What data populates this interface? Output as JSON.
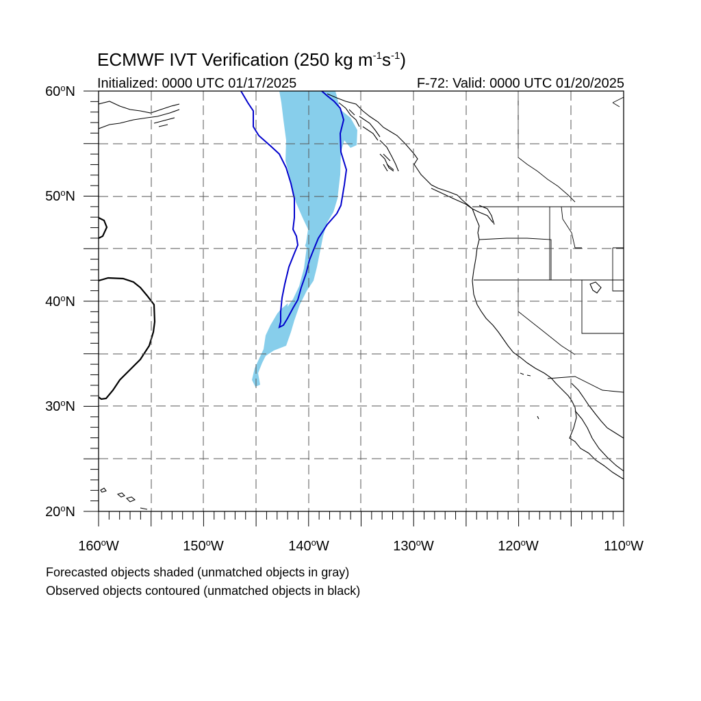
{
  "title": {
    "main": "ECMWF IVT Verification (250 kg m",
    "sup1": "-1",
    "mid": "s",
    "sup2": "-1",
    "end": ")"
  },
  "subtitle": {
    "left": "Initialized: 0000 UTC 01/17/2025",
    "right": "F-72: Valid: 0000 UTC 01/20/2025"
  },
  "map": {
    "region": "Northeast Pacific / North American West Coast",
    "lon_range": [
      -160,
      -110
    ],
    "lat_range": [
      20,
      60
    ],
    "gridlines": "dashed every 5 degrees",
    "colors": {
      "forecast_shading": "#87ceeb",
      "observed_contour": "#0000cc",
      "coastline": "#000000",
      "gridline": "#555555"
    }
  },
  "axes": {
    "lat_labels": [
      {
        "value": 60,
        "num": "60",
        "deg": "o",
        "hemi": "N"
      },
      {
        "value": 50,
        "num": "50",
        "deg": "o",
        "hemi": "N"
      },
      {
        "value": 40,
        "num": "40",
        "deg": "o",
        "hemi": "N"
      },
      {
        "value": 30,
        "num": "30",
        "deg": "o",
        "hemi": "N"
      },
      {
        "value": 20,
        "num": "20",
        "deg": "o",
        "hemi": "N"
      }
    ],
    "lon_labels": [
      {
        "value": -160,
        "num": "160",
        "deg": "o",
        "hemi": "W"
      },
      {
        "value": -150,
        "num": "150",
        "deg": "o",
        "hemi": "W"
      },
      {
        "value": -140,
        "num": "140",
        "deg": "o",
        "hemi": "W"
      },
      {
        "value": -130,
        "num": "130",
        "deg": "o",
        "hemi": "W"
      },
      {
        "value": -120,
        "num": "120",
        "deg": "o",
        "hemi": "W"
      },
      {
        "value": -110,
        "num": "110",
        "deg": "o",
        "hemi": "W"
      }
    ]
  },
  "legend_notes": {
    "line1": "Forecasted objects shaded (unmatched objects in gray)",
    "line2": "Observed objects contoured (unmatched objects in black)"
  }
}
